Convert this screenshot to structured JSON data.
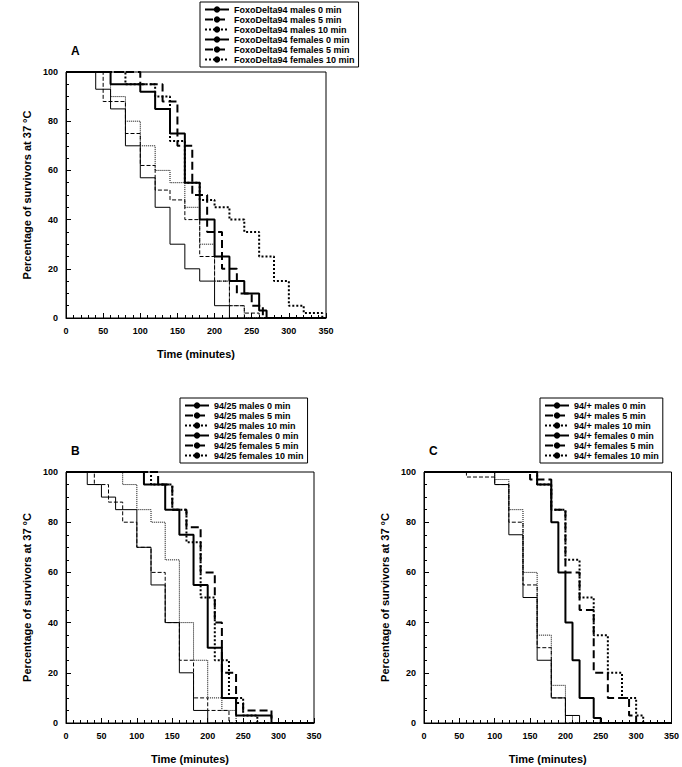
{
  "chart_data": [
    {
      "type": "step",
      "title": "A",
      "x_label": "Time (minutes)",
      "y_label": "Percentage of survivors at 37 °C",
      "xlim": [
        0,
        350
      ],
      "xticks": [
        0,
        50,
        100,
        150,
        200,
        250,
        300,
        350
      ],
      "ylim": [
        0,
        100
      ],
      "yticks": [
        0,
        20,
        40,
        60,
        80,
        100
      ],
      "grid": false,
      "series": [
        {
          "name": "FoxoDelta94 males 0 min",
          "color": "#000000",
          "line_style": "solid",
          "x": [
            0,
            30,
            40,
            60,
            80,
            100,
            120,
            140,
            160,
            180,
            200,
            220,
            350
          ],
          "values": [
            100,
            100,
            93,
            85,
            70,
            57,
            45,
            30,
            20,
            15,
            5,
            0,
            0
          ]
        },
        {
          "name": "FoxoDelta94 males 5 min",
          "color": "#000000",
          "line_style": "dashed",
          "x": [
            0,
            30,
            50,
            80,
            100,
            120,
            140,
            160,
            180,
            200,
            220,
            240,
            260,
            350
          ],
          "values": [
            100,
            100,
            88,
            75,
            62,
            52,
            48,
            40,
            25,
            15,
            5,
            2,
            0,
            0
          ]
        },
        {
          "name": "FoxoDelta94 males 10 min",
          "color": "#000000",
          "line_style": "dotted",
          "x": [
            0,
            40,
            60,
            80,
            100,
            120,
            140,
            160,
            180,
            200,
            220,
            240,
            350
          ],
          "values": [
            100,
            100,
            90,
            80,
            70,
            60,
            55,
            45,
            30,
            15,
            5,
            0,
            0
          ]
        },
        {
          "name": "FoxoDelta94 females 0 min",
          "color": "#000000",
          "line_style": "solid",
          "x": [
            0,
            40,
            60,
            100,
            120,
            140,
            160,
            180,
            200,
            220,
            240,
            260,
            270,
            350
          ],
          "values": [
            100,
            100,
            95,
            92,
            85,
            75,
            55,
            40,
            25,
            15,
            10,
            3,
            0,
            0
          ]
        },
        {
          "name": "FoxoDelta94 females 5 min",
          "color": "#000000",
          "line_style": "dashed",
          "x": [
            0,
            50,
            100,
            130,
            150,
            170,
            190,
            210,
            230,
            250,
            265,
            350
          ],
          "values": [
            100,
            100,
            95,
            88,
            70,
            50,
            35,
            20,
            10,
            5,
            0,
            0
          ]
        },
        {
          "name": "FoxoDelta94 females 10 min",
          "color": "#000000",
          "line_style": "dotted",
          "x": [
            0,
            40,
            80,
            120,
            140,
            160,
            180,
            200,
            220,
            240,
            260,
            280,
            300,
            320,
            345,
            350
          ],
          "values": [
            100,
            100,
            95,
            90,
            72,
            55,
            48,
            45,
            40,
            35,
            25,
            15,
            5,
            2,
            0,
            0
          ]
        }
      ]
    },
    {
      "type": "step",
      "title": "B",
      "x_label": "Time (minutes)",
      "y_label": "Percentage of survivors at 37 °C",
      "xlim": [
        0,
        350
      ],
      "xticks": [
        0,
        50,
        100,
        150,
        200,
        250,
        300,
        350
      ],
      "ylim": [
        0,
        100
      ],
      "yticks": [
        0,
        20,
        40,
        60,
        80,
        100
      ],
      "grid": false,
      "series": [
        {
          "name": "94/25 males 0 min",
          "color": "#000000",
          "line_style": "solid",
          "x": [
            0,
            20,
            30,
            50,
            70,
            100,
            120,
            140,
            160,
            180,
            200,
            350
          ],
          "values": [
            100,
            100,
            95,
            90,
            85,
            70,
            55,
            40,
            20,
            5,
            0,
            0
          ]
        },
        {
          "name": "94/25 males 5 min",
          "color": "#000000",
          "line_style": "dashed",
          "x": [
            0,
            20,
            40,
            60,
            80,
            100,
            120,
            140,
            160,
            180,
            200,
            230,
            350
          ],
          "values": [
            100,
            100,
            95,
            88,
            80,
            70,
            60,
            40,
            25,
            10,
            5,
            0,
            0
          ]
        },
        {
          "name": "94/25 males 10 min",
          "color": "#000000",
          "line_style": "dotted",
          "x": [
            0,
            40,
            80,
            100,
            120,
            140,
            160,
            180,
            200,
            220,
            240,
            350
          ],
          "values": [
            100,
            100,
            95,
            85,
            80,
            65,
            40,
            25,
            10,
            5,
            0,
            0
          ]
        },
        {
          "name": "94/25 females 0 min",
          "color": "#000000",
          "line_style": "solid",
          "x": [
            0,
            60,
            110,
            140,
            160,
            180,
            200,
            220,
            240,
            290,
            350
          ],
          "values": [
            100,
            100,
            95,
            85,
            75,
            55,
            30,
            10,
            3,
            0,
            0
          ]
        },
        {
          "name": "94/25 females 5 min",
          "color": "#000000",
          "line_style": "dashed",
          "x": [
            0,
            80,
            130,
            150,
            170,
            190,
            210,
            220,
            240,
            250,
            290,
            350
          ],
          "values": [
            100,
            100,
            95,
            85,
            78,
            60,
            40,
            20,
            8,
            5,
            0,
            0
          ]
        },
        {
          "name": "94/25 females 10 min",
          "color": "#000000",
          "line_style": "dotted",
          "x": [
            0,
            60,
            120,
            150,
            170,
            190,
            210,
            230,
            250,
            270,
            350
          ],
          "values": [
            100,
            100,
            95,
            85,
            72,
            50,
            25,
            10,
            3,
            0,
            0
          ]
        }
      ]
    },
    {
      "type": "step",
      "title": "C",
      "x_label": "Time (minutes)",
      "y_label": "Percentage of survivors at 37 °C",
      "xlim": [
        0,
        350
      ],
      "xticks": [
        0,
        50,
        100,
        150,
        200,
        250,
        300,
        350
      ],
      "ylim": [
        0,
        100
      ],
      "yticks": [
        0,
        20,
        40,
        60,
        80,
        100
      ],
      "grid": false,
      "series": [
        {
          "name": "94/+ males 0 min",
          "color": "#000000",
          "line_style": "solid",
          "x": [
            0,
            60,
            100,
            120,
            140,
            160,
            180,
            200,
            220,
            350
          ],
          "values": [
            100,
            100,
            95,
            75,
            50,
            25,
            10,
            3,
            0,
            0
          ]
        },
        {
          "name": "94/+ males 5 min",
          "color": "#000000",
          "line_style": "dashed",
          "x": [
            0,
            40,
            60,
            100,
            120,
            140,
            160,
            180,
            200,
            350
          ],
          "values": [
            100,
            100,
            98,
            95,
            80,
            55,
            30,
            10,
            0,
            0
          ]
        },
        {
          "name": "94/+ males 10 min",
          "color": "#000000",
          "line_style": "dotted",
          "x": [
            0,
            70,
            100,
            120,
            140,
            160,
            180,
            200,
            210,
            350
          ],
          "values": [
            100,
            100,
            97,
            85,
            60,
            35,
            15,
            3,
            0,
            0
          ]
        },
        {
          "name": "94/+ females 0 min",
          "color": "#000000",
          "line_style": "solid",
          "x": [
            0,
            120,
            160,
            180,
            190,
            200,
            210,
            220,
            240,
            250,
            350
          ],
          "values": [
            100,
            100,
            95,
            80,
            60,
            40,
            25,
            10,
            2,
            0,
            0
          ]
        },
        {
          "name": "94/+ females 5 min",
          "color": "#000000",
          "line_style": "dashed",
          "x": [
            0,
            110,
            150,
            180,
            200,
            220,
            240,
            260,
            290,
            300,
            350
          ],
          "values": [
            100,
            100,
            97,
            85,
            60,
            45,
            20,
            10,
            3,
            0,
            0
          ]
        },
        {
          "name": "94/+ females 10 min",
          "color": "#000000",
          "line_style": "dotted",
          "x": [
            0,
            130,
            160,
            180,
            200,
            220,
            240,
            260,
            280,
            300,
            310,
            350
          ],
          "values": [
            100,
            100,
            95,
            85,
            65,
            50,
            35,
            20,
            10,
            3,
            0,
            0
          ]
        }
      ]
    }
  ]
}
